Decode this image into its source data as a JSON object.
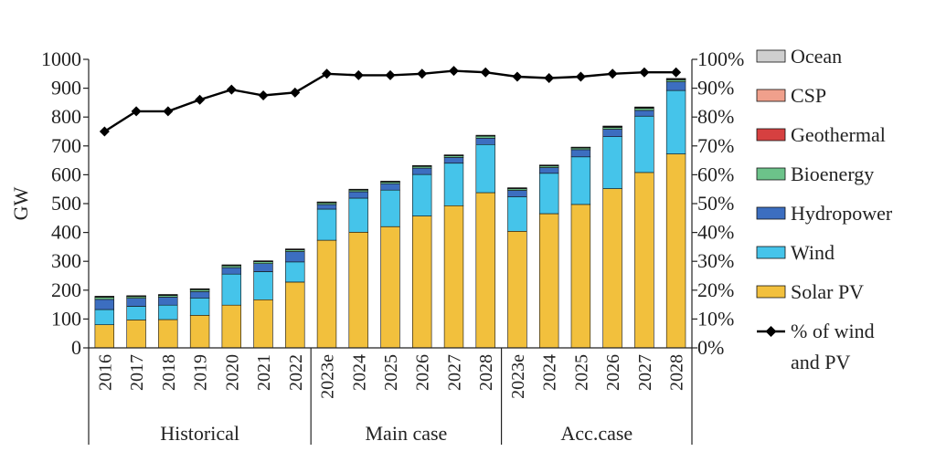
{
  "chart_data": {
    "type": "bar",
    "stacked": true,
    "ylabel": "GW",
    "ylim": [
      0,
      1000
    ],
    "yticks": [
      "0",
      "100",
      "200",
      "300",
      "400",
      "500",
      "600",
      "700",
      "800",
      "900",
      "1000"
    ],
    "y2lim": [
      0,
      100
    ],
    "y2ticks": [
      "0%",
      "10%",
      "20%",
      "30%",
      "40%",
      "50%",
      "60%",
      "70%",
      "80%",
      "90%",
      "100%"
    ],
    "categories": [
      "2016",
      "2017",
      "2018",
      "2019",
      "2020",
      "2021",
      "2022",
      "2023e",
      "2024",
      "2025",
      "2026",
      "2027",
      "2028",
      "2023e",
      "2024",
      "2025",
      "2026",
      "2027",
      "2028"
    ],
    "groups": [
      {
        "label": "Historical",
        "count": 7
      },
      {
        "label": "Main case",
        "count": 6
      },
      {
        "label": "Acc.case",
        "count": 6
      }
    ],
    "series": [
      {
        "name": "Solar PV",
        "color": "#f2c03d",
        "values": [
          80,
          97,
          98,
          113,
          148,
          167,
          228,
          373,
          401,
          420,
          457,
          493,
          538,
          404,
          465,
          497,
          552,
          608,
          672
        ]
      },
      {
        "name": "Wind",
        "color": "#45c4ea",
        "values": [
          53,
          47,
          50,
          60,
          108,
          97,
          70,
          108,
          118,
          127,
          144,
          147,
          167,
          120,
          140,
          165,
          180,
          195,
          220
        ]
      },
      {
        "name": "Hydropower",
        "color": "#3c6ec0",
        "values": [
          35,
          28,
          28,
          22,
          22,
          28,
          36,
          16,
          22,
          22,
          22,
          20,
          22,
          22,
          20,
          25,
          26,
          20,
          30
        ]
      },
      {
        "name": "Bioenergy",
        "color": "#6cc38a",
        "values": [
          8,
          6,
          6,
          7,
          7,
          7,
          6,
          6,
          6,
          6,
          6,
          6,
          7,
          6,
          6,
          6,
          6,
          7,
          7
        ]
      },
      {
        "name": "Geothermal",
        "color": "#d64040",
        "values": [
          1,
          1,
          1,
          1,
          1,
          1,
          1,
          1,
          1,
          1,
          1,
          1,
          1,
          1,
          1,
          1,
          2,
          2,
          2
        ]
      },
      {
        "name": "CSP",
        "color": "#f0a08c",
        "values": [
          1,
          1,
          1,
          1,
          1,
          1,
          1,
          1,
          1,
          1,
          1,
          1,
          1,
          1,
          1,
          1,
          2,
          2,
          2
        ]
      },
      {
        "name": "Ocean",
        "color": "#cfcfcf",
        "values": [
          1,
          1,
          1,
          1,
          1,
          1,
          1,
          1,
          1,
          1,
          1,
          1,
          1,
          1,
          1,
          1,
          1,
          1,
          1
        ]
      }
    ],
    "line_series": {
      "name": "% of wind and PV",
      "name_lines": [
        "% of wind",
        "and PV"
      ],
      "color": "#000000",
      "axis": "right",
      "values": [
        75,
        82,
        82,
        86,
        89.5,
        87.5,
        88.5,
        95,
        94.5,
        94.5,
        95,
        96,
        95.5,
        94,
        93.5,
        94,
        95,
        95.5,
        95.5
      ]
    },
    "legend_position": "right",
    "grid": false
  }
}
